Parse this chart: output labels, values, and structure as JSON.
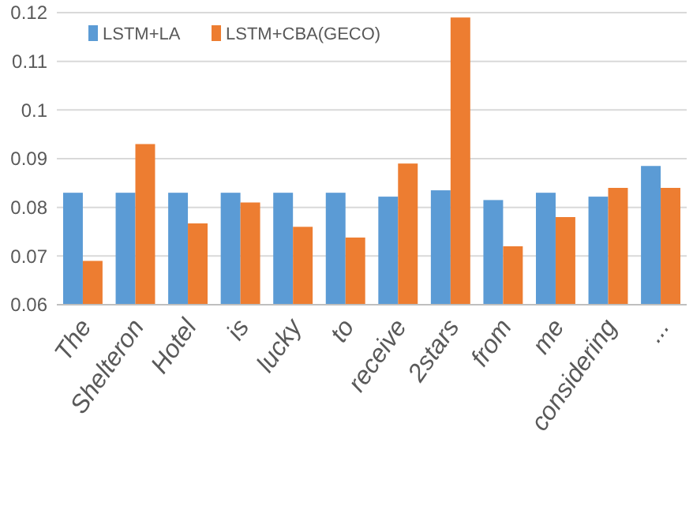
{
  "chart_data": {
    "type": "bar",
    "categories": [
      "The",
      "Shelteron",
      "Hotel",
      "is",
      "lucky",
      "to",
      "receive",
      "2stars",
      "from",
      "me",
      "considering",
      "..."
    ],
    "series": [
      {
        "name": "LSTM+LA",
        "color": "#5b9bd5",
        "values": [
          0.083,
          0.083,
          0.083,
          0.083,
          0.083,
          0.083,
          0.0822,
          0.0835,
          0.0815,
          0.083,
          0.0822,
          0.0885
        ]
      },
      {
        "name": "LSTM+CBA(GECO)",
        "color": "#ed7d31",
        "values": [
          0.069,
          0.093,
          0.0767,
          0.081,
          0.076,
          0.0738,
          0.089,
          0.119,
          0.072,
          0.078,
          0.084,
          0.084
        ]
      }
    ],
    "ylim": [
      0.06,
      0.12
    ],
    "yticks": [
      0.06,
      0.07,
      0.08,
      0.09,
      {
        "value": 0.1,
        "label": "0.1"
      },
      0.11,
      0.12
    ],
    "grid": "y",
    "legend": "top left"
  }
}
